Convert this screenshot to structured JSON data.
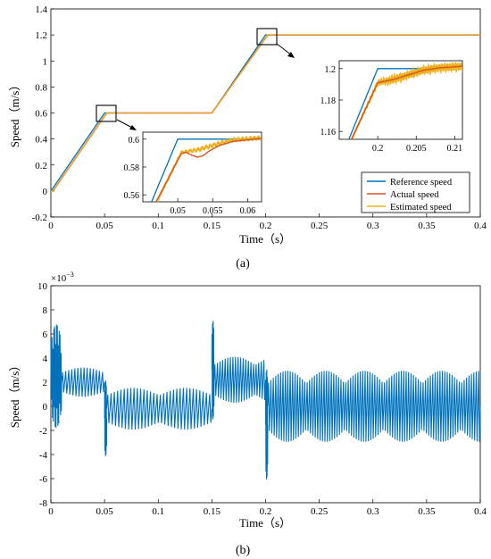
{
  "colors": {
    "reference": "#0072BD",
    "actual": "#D95319",
    "estimated": "#EDB120",
    "error": "#0072BD"
  },
  "chart_data": [
    {
      "type": "line",
      "panel_label": "(a)",
      "xlabel": "Time（s）",
      "ylabel": "Speed（m/s）",
      "xlim": [
        0,
        0.4
      ],
      "ylim": [
        -0.2,
        1.4
      ],
      "x_ticks": [
        "0",
        "0.05",
        "0.1",
        "0.15",
        "0.2",
        "0.25",
        "0.3",
        "0.35",
        "0.4"
      ],
      "y_ticks": [
        "-0.2",
        "0",
        "0.2",
        "0.4",
        "0.6",
        "0.8",
        "1",
        "1.2",
        "1.4"
      ],
      "x_tick_values": [
        0,
        0.05,
        0.1,
        0.15,
        0.2,
        0.25,
        0.3,
        0.35,
        0.4
      ],
      "y_tick_values": [
        -0.2,
        0,
        0.2,
        0.4,
        0.6,
        0.8,
        1.0,
        1.2,
        1.4
      ],
      "legend_position": "bottom-right",
      "series": [
        {
          "name": "Reference speed",
          "x": [
            0,
            0.05,
            0.15,
            0.2,
            0.4
          ],
          "y": [
            0,
            0.6,
            0.6,
            1.2,
            1.2
          ]
        },
        {
          "name": "Actual speed",
          "x": [
            0,
            0.002,
            0.052,
            0.15,
            0.202,
            0.4
          ],
          "y": [
            0,
            0,
            0.6,
            0.6,
            1.2,
            1.2
          ]
        },
        {
          "name": "Estimated speed",
          "x": [
            0,
            0.002,
            0.052,
            0.15,
            0.202,
            0.4
          ],
          "y": [
            0,
            0,
            0.6,
            0.6,
            1.2,
            1.2
          ]
        }
      ],
      "insets": [
        {
          "xlim": [
            0.045,
            0.062
          ],
          "ylim": [
            0.555,
            0.605
          ],
          "x_ticks": [
            "0.05",
            "0.055",
            "0.06"
          ],
          "x_tick_values": [
            0.05,
            0.055,
            0.06
          ],
          "y_ticks": [
            "0.56",
            "0.58",
            "0.6"
          ],
          "y_tick_values": [
            0.56,
            0.58,
            0.6
          ],
          "reference": {
            "x": [
              0.045,
              0.05,
              0.062
            ],
            "y": [
              0.54,
              0.6,
              0.6
            ]
          },
          "actual": {
            "x": [
              0.0469,
              0.0505,
              0.0512,
              0.052,
              0.0528,
              0.0536,
              0.0545,
              0.056,
              0.058,
              0.062
            ],
            "y": [
              0.555,
              0.5895,
              0.5905,
              0.5885,
              0.587,
              0.588,
              0.5915,
              0.5955,
              0.5985,
              0.6005
            ]
          },
          "estimated": {
            "x": [
              0.047,
              0.0505,
              0.053,
              0.056,
              0.058,
              0.062
            ],
            "y": [
              0.555,
              0.5905,
              0.5925,
              0.597,
              0.5995,
              0.601
            ]
          }
        },
        {
          "xlim": [
            0.195,
            0.211
          ],
          "ylim": [
            1.155,
            1.205
          ],
          "x_ticks": [
            "0.2",
            "0.205",
            "0.21"
          ],
          "x_tick_values": [
            0.2,
            0.205,
            0.21
          ],
          "y_ticks": [
            "1.16",
            "1.18",
            "1.2"
          ],
          "y_tick_values": [
            1.16,
            1.18,
            1.2
          ],
          "reference": {
            "x": [
              0.195,
              0.2,
              0.211
            ],
            "y": [
              1.14,
              1.2,
              1.2
            ]
          },
          "actual": {
            "x": [
              0.1966,
              0.2,
              0.202,
              0.204,
              0.206,
              0.208,
              0.211
            ],
            "y": [
              1.155,
              1.191,
              1.193,
              1.196,
              1.199,
              1.2005,
              1.2015
            ]
          },
          "estimated": {
            "x": [
              0.1966,
              0.2,
              0.202,
              0.204,
              0.206,
              0.208,
              0.211
            ],
            "y": [
              1.155,
              1.191,
              1.193,
              1.196,
              1.199,
              1.2005,
              1.2015
            ]
          }
        }
      ]
    },
    {
      "type": "line",
      "panel_label": "(b)",
      "xlabel": "Time（s）",
      "ylabel": "Speed（m/s）",
      "exponent_label": "×10",
      "exponent": "−3",
      "xlim": [
        0,
        0.4
      ],
      "ylim": [
        -8,
        10
      ],
      "x_ticks": [
        "0",
        "0.05",
        "0.1",
        "0.15",
        "0.2",
        "0.25",
        "0.3",
        "0.35",
        "0.4"
      ],
      "y_ticks": [
        "-8",
        "-6",
        "-4",
        "-2",
        "0",
        "2",
        "4",
        "6",
        "8",
        "10"
      ],
      "x_tick_values": [
        0,
        0.05,
        0.1,
        0.15,
        0.2,
        0.25,
        0.3,
        0.35,
        0.4
      ],
      "y_tick_values": [
        -8,
        -6,
        -4,
        -2,
        0,
        2,
        4,
        6,
        8,
        10
      ],
      "series": [
        {
          "segments": [
            {
              "x0": 0.0,
              "x1": 0.01,
              "center": 2.5,
              "amp": 4.5,
              "cycles": 6
            },
            {
              "x0": 0.01,
              "x1": 0.05,
              "center": 2.0,
              "amp": 1.4,
              "cycles": 7
            },
            {
              "x0": 0.05,
              "x1": 0.052,
              "center": -1.0,
              "amp": 3.3,
              "cycles": 2
            },
            {
              "x0": 0.052,
              "x1": 0.15,
              "center": -0.2,
              "amp": 2.0,
              "cycles": 16
            },
            {
              "x0": 0.15,
              "x1": 0.152,
              "center": 3.0,
              "amp": 4.3,
              "cycles": 2
            },
            {
              "x0": 0.152,
              "x1": 0.2,
              "center": 2.2,
              "amp": 2.2,
              "cycles": 10
            },
            {
              "x0": 0.2,
              "x1": 0.202,
              "center": -1.5,
              "amp": 4.8,
              "cycles": 2
            },
            {
              "x0": 0.202,
              "x1": 0.4,
              "center": 0.0,
              "amp": 3.4,
              "cycles": 44
            }
          ]
        }
      ]
    }
  ]
}
